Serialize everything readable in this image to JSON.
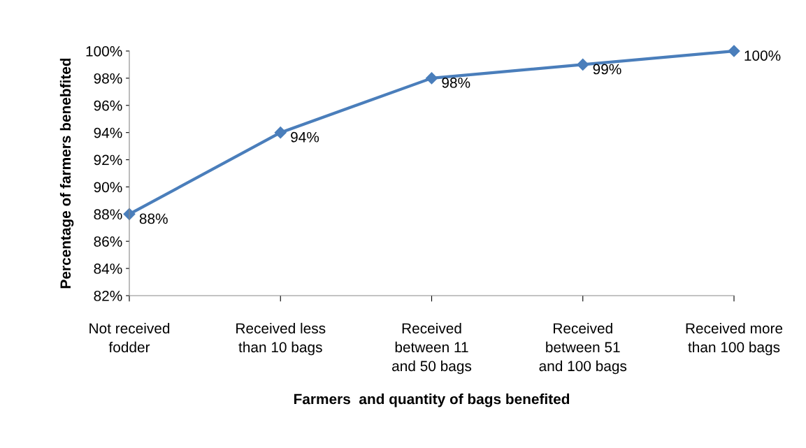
{
  "chart_data": {
    "type": "line",
    "xlabel": "Farmers  and quantity of bags benefited",
    "ylabel": "Percentage of farmers benebfited",
    "categories": [
      "Not received\nfodder",
      "Received less\nthan 10 bags",
      "Received\nbetween 11\nand 50 bags",
      "Received\nbetween 51\nand 100 bags",
      "Received more\nthan 100 bags"
    ],
    "series": [
      {
        "color": "#4a7ebb",
        "values": [
          88,
          94,
          98,
          99,
          100
        ],
        "value_labels": [
          "88%",
          "94%",
          "98%",
          "99%",
          "100%"
        ]
      }
    ],
    "ylim": [
      82,
      100
    ],
    "yticks": [
      {
        "value": 82,
        "label": "82%"
      },
      {
        "value": 84,
        "label": "84%"
      },
      {
        "value": 86,
        "label": "86%"
      },
      {
        "value": 88,
        "label": "88%"
      },
      {
        "value": 90,
        "label": "90%"
      },
      {
        "value": 92,
        "label": "92%"
      },
      {
        "value": 94,
        "label": "94%"
      },
      {
        "value": 96,
        "label": "96%"
      },
      {
        "value": 98,
        "label": "98%"
      },
      {
        "value": 100,
        "label": "100%"
      }
    ],
    "marker": "diamond",
    "line_style": "solid",
    "grid": false,
    "legend": false
  }
}
